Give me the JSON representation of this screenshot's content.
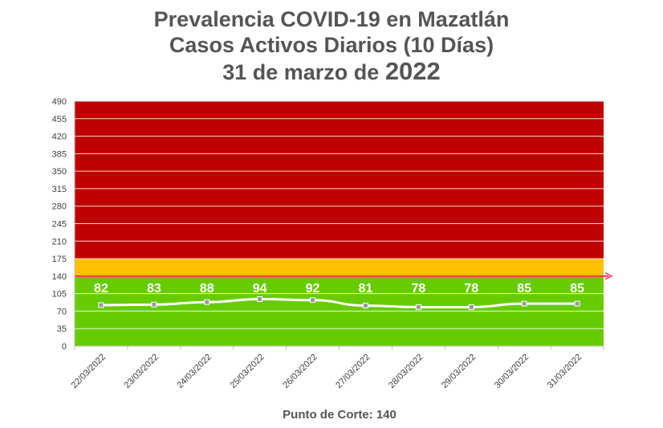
{
  "chart_data": {
    "type": "line",
    "title": [
      "Prevalencia COVID-19 en Mazatlán",
      "Casos Activos Diarios (10 Días)",
      "31 de marzo de",
      "2022"
    ],
    "categories": [
      "22/03/2022",
      "23/03/2022",
      "24/03/2022",
      "25/03/2022",
      "26/03/2022",
      "27/03/2022",
      "28/03/2022",
      "29/03/2022",
      "30/03/2022",
      "31/03/2022"
    ],
    "series": [
      {
        "values": [
          82,
          83,
          88,
          94,
          92,
          81,
          78,
          78,
          85,
          85
        ]
      }
    ],
    "ylim": [
      0,
      490
    ],
    "yticks": [
      0,
      35,
      70,
      105,
      140,
      175,
      210,
      245,
      280,
      315,
      350,
      385,
      420,
      455,
      490
    ],
    "bands": [
      {
        "from": 0,
        "to": 140,
        "color": "#66cc00"
      },
      {
        "from": 140,
        "to": 175,
        "color": "#ffc000"
      },
      {
        "from": 175,
        "to": 490,
        "color": "#c00000"
      }
    ],
    "cutoff_line": {
      "value": 140,
      "color": "#ff3366"
    },
    "line_color": "#ffffff",
    "marker_color": "#999999",
    "grid": true,
    "footer": "Punto de Corte: 140"
  }
}
